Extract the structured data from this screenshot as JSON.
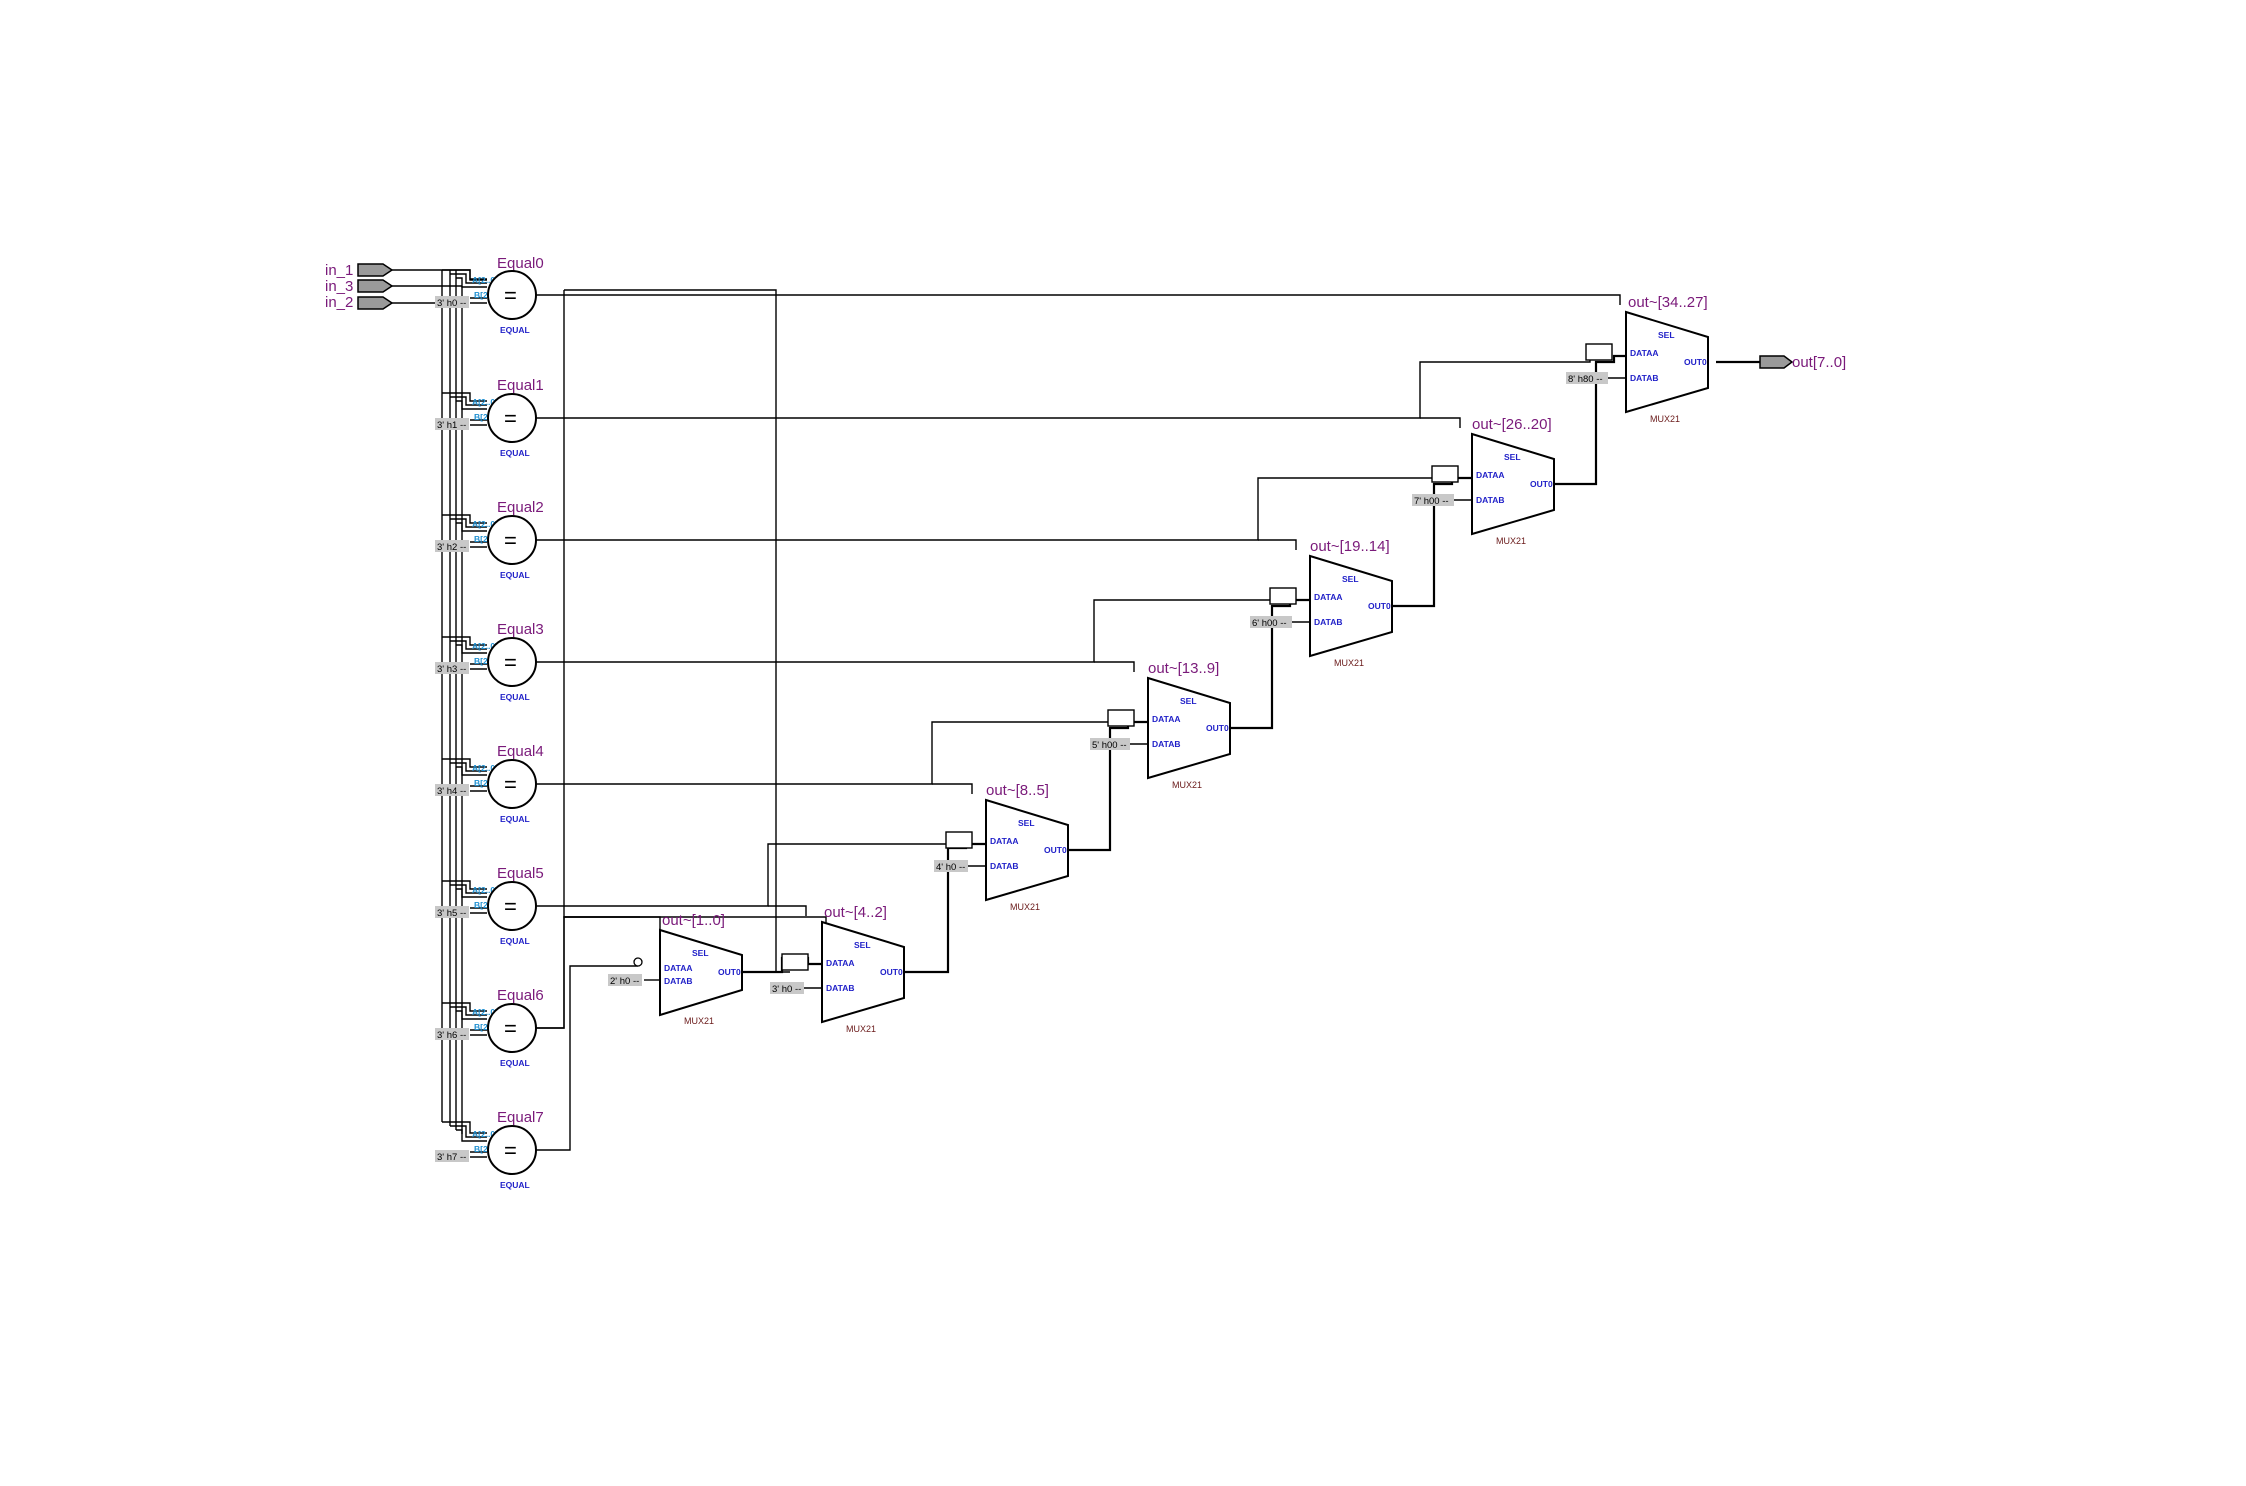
{
  "inputs": [
    {
      "label": "in_1"
    },
    {
      "label": "in_3"
    },
    {
      "label": "in_2"
    }
  ],
  "output": {
    "label": "out[7..0]"
  },
  "equals": [
    {
      "name": "Equal0",
      "const": "3' h0 --",
      "a": "A[2..0]",
      "b": "B[2..0]",
      "sym": "=",
      "type": "EQUAL"
    },
    {
      "name": "Equal1",
      "const": "3' h1 --",
      "a": "A[2..0]",
      "b": "B[2..0]",
      "sym": "=",
      "type": "EQUAL"
    },
    {
      "name": "Equal2",
      "const": "3' h2 --",
      "a": "A[2..0]",
      "b": "B[2..0]",
      "sym": "=",
      "type": "EQUAL"
    },
    {
      "name": "Equal3",
      "const": "3' h3 --",
      "a": "A[2..0]",
      "b": "B[2..0]",
      "sym": "=",
      "type": "EQUAL"
    },
    {
      "name": "Equal4",
      "const": "3' h4 --",
      "a": "A[2..0]",
      "b": "B[2..0]",
      "sym": "=",
      "type": "EQUAL"
    },
    {
      "name": "Equal5",
      "const": "3' h5 --",
      "a": "A[2..0]",
      "b": "B[2..0]",
      "sym": "=",
      "type": "EQUAL"
    },
    {
      "name": "Equal6",
      "const": "3' h6 --",
      "a": "A[2..0]",
      "b": "B[2..0]",
      "sym": "=",
      "type": "EQUAL"
    },
    {
      "name": "Equal7",
      "const": "3' h7 --",
      "a": "A[2..0]",
      "b": "B[2..0]",
      "sym": "=",
      "type": "EQUAL"
    }
  ],
  "muxes": [
    {
      "name": "out~[1..0]",
      "const": "2' h0 --",
      "sel": "SEL",
      "dataa": "DATAA",
      "datab": "DATAB",
      "out": "OUT0",
      "type": "MUX21"
    },
    {
      "name": "out~[4..2]",
      "const": "3' h0 --",
      "sel": "SEL",
      "dataa": "DATAA",
      "datab": "DATAB",
      "out": "OUT0",
      "type": "MUX21"
    },
    {
      "name": "out~[8..5]",
      "const": "4' h0 --",
      "sel": "SEL",
      "dataa": "DATAA",
      "datab": "DATAB",
      "out": "OUT0",
      "type": "MUX21"
    },
    {
      "name": "out~[13..9]",
      "const": "5' h00 --",
      "sel": "SEL",
      "dataa": "DATAA",
      "datab": "DATAB",
      "out": "OUT0",
      "type": "MUX21"
    },
    {
      "name": "out~[19..14]",
      "const": "6' h00 --",
      "sel": "SEL",
      "dataa": "DATAA",
      "datab": "DATAB",
      "out": "OUT0",
      "type": "MUX21"
    },
    {
      "name": "out~[26..20]",
      "const": "7' h00 --",
      "sel": "SEL",
      "dataa": "DATAA",
      "datab": "DATAB",
      "out": "OUT0",
      "type": "MUX21"
    },
    {
      "name": "out~[34..27]",
      "const": "8' h80 --",
      "sel": "SEL",
      "dataa": "DATAA",
      "datab": "DATAB",
      "out": "OUT0",
      "type": "MUX21"
    }
  ]
}
